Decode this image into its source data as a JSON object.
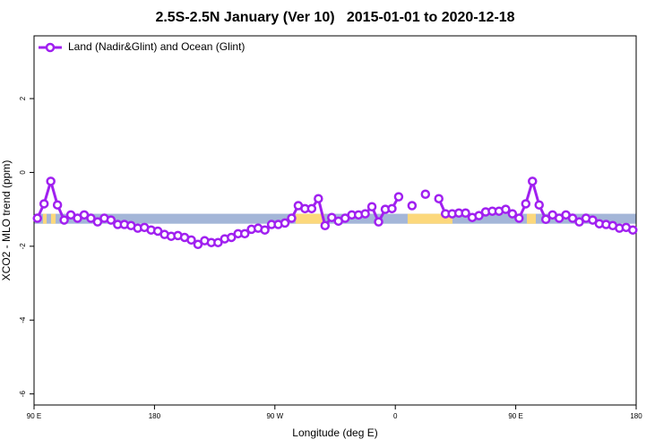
{
  "chart_data": {
    "type": "line",
    "title": "2.5S-2.5N January (Ver 10)   2015-01-01 to 2020-12-18",
    "xlabel": "Longitude (deg E)",
    "ylabel": "XCO2 - MLO trend (ppm)",
    "x": [
      92.5,
      97.5,
      102.5,
      107.5,
      112.5,
      117.5,
      122.5,
      127.5,
      132.5,
      137.5,
      142.5,
      147.5,
      152.5,
      157.5,
      162.5,
      167.5,
      172.5,
      177.5,
      182.5,
      187.5,
      192.5,
      197.5,
      202.5,
      207.5,
      212.5,
      217.5,
      222.5,
      227.5,
      232.5,
      237.5,
      242.5,
      247.5,
      252.5,
      257.5,
      262.5,
      267.5,
      272.5,
      277.5,
      282.5,
      287.5,
      292.5,
      297.5,
      302.5,
      307.5,
      312.5,
      317.5,
      322.5,
      327.5,
      332.5,
      337.5,
      342.5,
      347.5,
      352.5,
      357.5,
      362.5,
      367.5,
      372.5,
      377.5,
      382.5,
      387.5,
      392.5,
      397.5,
      402.5,
      407.5,
      412.5,
      417.5,
      422.5,
      427.5,
      432.5,
      437.5,
      442.5,
      447.5,
      452.5,
      457.5,
      462.5,
      467.5,
      472.5,
      477.5,
      482.5,
      487.5,
      492.5,
      497.5,
      502.5,
      507.5,
      512.5,
      517.5,
      522.5,
      527.5,
      532.5,
      537.5
    ],
    "series": [
      {
        "name": "Land (Nadir&Glint) and Ocean (Glint)",
        "color": "#a020f0",
        "values": [
          -1.24,
          -0.85,
          -0.24,
          -0.88,
          -1.29,
          -1.15,
          -1.24,
          -1.15,
          -1.24,
          -1.34,
          -1.24,
          -1.29,
          -1.41,
          -1.41,
          -1.44,
          -1.51,
          -1.49,
          -1.56,
          -1.59,
          -1.68,
          -1.73,
          -1.71,
          -1.76,
          -1.83,
          -1.95,
          -1.85,
          -1.9,
          -1.9,
          -1.8,
          -1.76,
          -1.66,
          -1.66,
          -1.54,
          -1.51,
          -1.56,
          -1.41,
          -1.41,
          -1.37,
          -1.24,
          -0.9,
          -0.98,
          -0.98,
          -0.71,
          -1.44,
          -1.22,
          -1.32,
          -1.24,
          -1.15,
          -1.15,
          -1.12,
          -0.93,
          -1.34,
          -1.0,
          -0.98,
          -0.66,
          null,
          -0.9,
          null,
          -0.59,
          null,
          -0.71,
          -1.12,
          -1.12,
          -1.1,
          -1.1,
          -1.22,
          -1.17,
          -1.07,
          -1.05,
          -1.05,
          -1.0,
          -1.12,
          -1.24,
          -0.85,
          -0.24,
          -0.88,
          -1.27,
          -1.15,
          -1.24,
          -1.15,
          -1.24,
          -1.34,
          -1.24,
          -1.29,
          -1.39,
          -1.41,
          -1.44,
          -1.51,
          -1.49,
          -1.56
        ]
      }
    ],
    "band": {
      "ylim": [
        -1.39,
        -1.12
      ],
      "ocean_color": "#a4b6d8",
      "land_color": "#fcd87c",
      "land": [
        [
          96.7,
          99.4
        ],
        [
          102.7,
          106.1
        ],
        [
          285.5,
          307
        ],
        [
          369.2,
          402.7
        ],
        [
          458.3,
          465
        ]
      ]
    },
    "xlim": [
      90,
      540
    ],
    "xticks": [
      {
        "value": 90,
        "label": "90 E"
      },
      180,
      {
        "value": 270,
        "label": "90 W"
      },
      {
        "value": 360,
        "label": "0"
      },
      {
        "value": 450,
        "label": "90 E"
      },
      {
        "value": 540,
        "label": "180"
      }
    ],
    "ylim": [
      -6.3,
      3.7
    ],
    "yticks": [
      -6,
      -4,
      -2,
      0,
      2
    ],
    "legend": "top-left"
  }
}
